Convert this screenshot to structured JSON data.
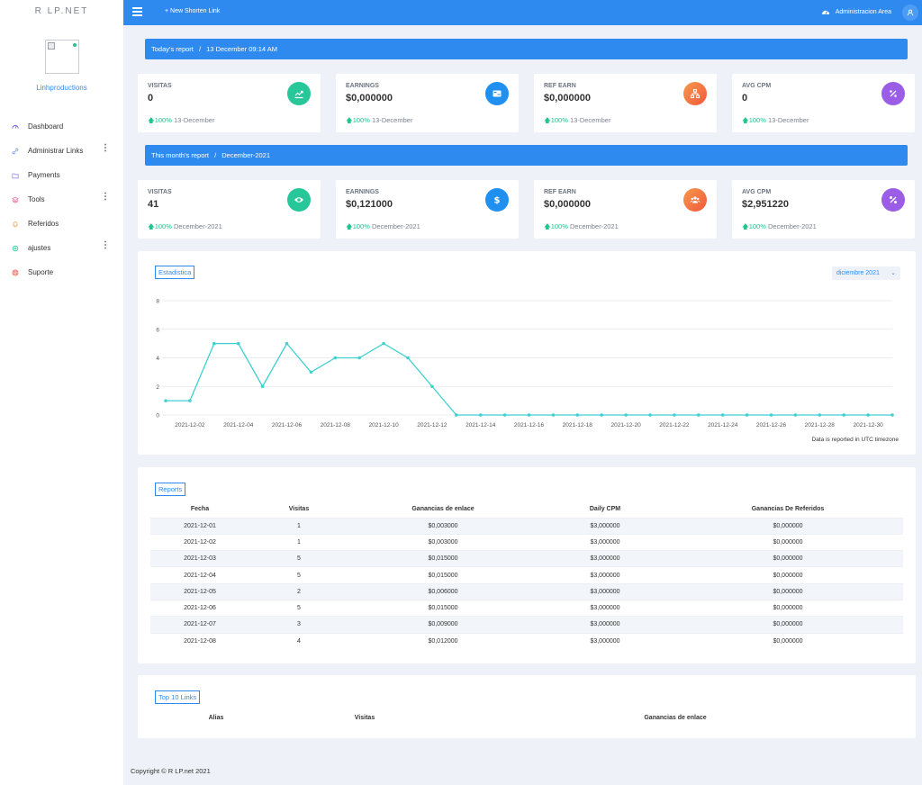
{
  "sidebar": {
    "brand": "R LP.NET",
    "username": "Linhproductions",
    "items": [
      {
        "label": "Dashboard",
        "icon": "dashboard-icon",
        "color": "#6c5ce7",
        "more": false
      },
      {
        "label": "Administrar Links",
        "icon": "link-icon",
        "color": "#6c8cf0",
        "more": true
      },
      {
        "label": "Payments",
        "icon": "folder-icon",
        "color": "#9b8cf0",
        "more": false
      },
      {
        "label": "Tools",
        "icon": "layers-icon",
        "color": "#e86a9a",
        "more": true
      },
      {
        "label": "Referidos",
        "icon": "bell-icon",
        "color": "#f0a050",
        "more": false
      },
      {
        "label": "ajustes",
        "icon": "settings-icon",
        "color": "#28c79a",
        "more": true
      },
      {
        "label": "Suporte",
        "icon": "support-icon",
        "color": "#f05a50",
        "more": false
      }
    ]
  },
  "topbar": {
    "new_link": "+ New Shorten Link",
    "admin_area": "Administracion Area"
  },
  "today": {
    "bar_prefix": "Today's report",
    "bar_sep": "/",
    "bar_date": "13 December 09:14 AM",
    "cards": [
      {
        "label": "VISITAS",
        "value": "0",
        "pct": "100%",
        "period": "13-December",
        "icon": "chart-icon",
        "color": "#28c79a"
      },
      {
        "label": "EARNINGS",
        "value": "$0,000000",
        "pct": "100%",
        "period": "13-December",
        "icon": "card-icon",
        "color": "#1f8ff0"
      },
      {
        "label": "REF EARN",
        "value": "$0,000000",
        "pct": "100%",
        "period": "13-December",
        "icon": "network-icon",
        "color": "#f2733d"
      },
      {
        "label": "AVG CPM",
        "value": "0",
        "pct": "100%",
        "period": "13-December",
        "icon": "percent-icon",
        "color": "#9b5de5"
      }
    ]
  },
  "month": {
    "bar_prefix": "This month's report",
    "bar_sep": "/",
    "bar_date": "December-2021",
    "cards": [
      {
        "label": "VISITAS",
        "value": "41",
        "pct": "100%",
        "period": "December-2021",
        "icon": "eye-icon",
        "color": "#28c79a"
      },
      {
        "label": "EARNINGS",
        "value": "$0,121000",
        "pct": "100%",
        "period": "December-2021",
        "icon": "dollar-icon",
        "color": "#1f8ff0"
      },
      {
        "label": "REF EARN",
        "value": "$0,000000",
        "pct": "100%",
        "period": "December-2021",
        "icon": "users-icon",
        "color": "#f2733d"
      },
      {
        "label": "AVG CPM",
        "value": "$2,951220",
        "pct": "100%",
        "period": "December-2021",
        "icon": "percent-icon",
        "color": "#9b5de5"
      }
    ]
  },
  "stats": {
    "tag": "Estadistica",
    "month_select": "diciembre 2021",
    "utc_note": "Data is reported in UTC timezone"
  },
  "chart_data": {
    "type": "line",
    "title": "",
    "xlabel": "",
    "ylabel": "",
    "ylim": [
      0,
      8
    ],
    "yticks": [
      0,
      2,
      4,
      6,
      8
    ],
    "grid": true,
    "line_color": "#3fd0d0",
    "x": [
      "2021-12-01",
      "2021-12-02",
      "2021-12-03",
      "2021-12-04",
      "2021-12-05",
      "2021-12-06",
      "2021-12-07",
      "2021-12-08",
      "2021-12-09",
      "2021-12-10",
      "2021-12-11",
      "2021-12-12",
      "2021-12-13",
      "2021-12-14",
      "2021-12-15",
      "2021-12-16",
      "2021-12-17",
      "2021-12-18",
      "2021-12-19",
      "2021-12-20",
      "2021-12-21",
      "2021-12-22",
      "2021-12-23",
      "2021-12-24",
      "2021-12-25",
      "2021-12-26",
      "2021-12-27",
      "2021-12-28",
      "2021-12-29",
      "2021-12-30",
      "2021-12-31"
    ],
    "values": [
      1,
      1,
      5,
      5,
      2,
      5,
      3,
      4,
      4,
      5,
      4,
      2,
      0,
      0,
      0,
      0,
      0,
      0,
      0,
      0,
      0,
      0,
      0,
      0,
      0,
      0,
      0,
      0,
      0,
      0,
      0
    ],
    "xtick_labels": [
      "2021-12-02",
      "2021-12-04",
      "2021-12-06",
      "2021-12-08",
      "2021-12-10",
      "2021-12-12",
      "2021-12-14",
      "2021-12-16",
      "2021-12-18",
      "2021-12-20",
      "2021-12-22",
      "2021-12-24",
      "2021-12-26",
      "2021-12-28",
      "2021-12-30"
    ]
  },
  "reports": {
    "tag": "Reports",
    "columns": [
      "Fecha",
      "Visitas",
      "Ganancias de enlace",
      "Daily CPM",
      "Ganancias De Referidos"
    ],
    "rows": [
      [
        "2021-12-01",
        "1",
        "$0,003000",
        "$3,000000",
        "$0,000000"
      ],
      [
        "2021-12-02",
        "1",
        "$0,003000",
        "$3,000000",
        "$0,000000"
      ],
      [
        "2021-12-03",
        "5",
        "$0,015000",
        "$3,000000",
        "$0,000000"
      ],
      [
        "2021-12-04",
        "5",
        "$0,015000",
        "$3,000000",
        "$0,000000"
      ],
      [
        "2021-12-05",
        "2",
        "$0,006000",
        "$3,000000",
        "$0,000000"
      ],
      [
        "2021-12-06",
        "5",
        "$0,015000",
        "$3,000000",
        "$0,000000"
      ],
      [
        "2021-12-07",
        "3",
        "$0,009000",
        "$3,000000",
        "$0,000000"
      ],
      [
        "2021-12-08",
        "4",
        "$0,012000",
        "$3,000000",
        "$0,000000"
      ]
    ]
  },
  "top_links": {
    "tag": "Top 10 Links",
    "columns": [
      "Alias",
      "Visitas",
      "Ganancias de enlace"
    ]
  },
  "footer": {
    "copyright": "Copyright © R LP.net 2021"
  }
}
